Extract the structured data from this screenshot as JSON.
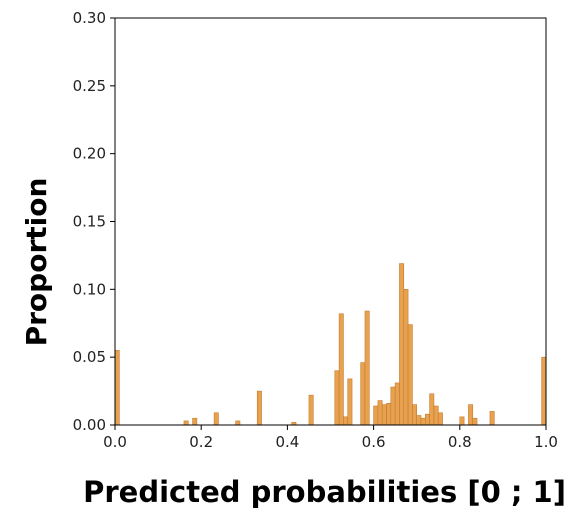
{
  "chart_data": {
    "type": "bar",
    "title": "",
    "xlabel": "Predicted probabilities [0 ; 1]",
    "ylabel": "Proportion",
    "xlim": [
      0,
      1
    ],
    "ylim": [
      0,
      0.3
    ],
    "xticks": [
      "0.0",
      "0.2",
      "0.4",
      "0.6",
      "0.8",
      "1.0"
    ],
    "yticks": [
      "0.00",
      "0.05",
      "0.10",
      "0.15",
      "0.20",
      "0.25",
      "0.30"
    ],
    "bin_width": 0.01,
    "bar_color": "#E8A24F",
    "bar_edge_color": "#C27B2E",
    "grid": false,
    "series": [
      {
        "bins": [
          {
            "x": 0.0,
            "value": 0.055
          },
          {
            "x": 0.16,
            "value": 0.003
          },
          {
            "x": 0.18,
            "value": 0.005
          },
          {
            "x": 0.23,
            "value": 0.009
          },
          {
            "x": 0.28,
            "value": 0.003
          },
          {
            "x": 0.33,
            "value": 0.025
          },
          {
            "x": 0.41,
            "value": 0.002
          },
          {
            "x": 0.45,
            "value": 0.022
          },
          {
            "x": 0.51,
            "value": 0.04
          },
          {
            "x": 0.52,
            "value": 0.082
          },
          {
            "x": 0.53,
            "value": 0.006
          },
          {
            "x": 0.54,
            "value": 0.034
          },
          {
            "x": 0.57,
            "value": 0.046
          },
          {
            "x": 0.58,
            "value": 0.084
          },
          {
            "x": 0.6,
            "value": 0.014
          },
          {
            "x": 0.61,
            "value": 0.018
          },
          {
            "x": 0.62,
            "value": 0.015
          },
          {
            "x": 0.63,
            "value": 0.016
          },
          {
            "x": 0.64,
            "value": 0.028
          },
          {
            "x": 0.65,
            "value": 0.031
          },
          {
            "x": 0.66,
            "value": 0.119
          },
          {
            "x": 0.67,
            "value": 0.1
          },
          {
            "x": 0.68,
            "value": 0.074
          },
          {
            "x": 0.69,
            "value": 0.015
          },
          {
            "x": 0.7,
            "value": 0.007
          },
          {
            "x": 0.71,
            "value": 0.005
          },
          {
            "x": 0.72,
            "value": 0.008
          },
          {
            "x": 0.73,
            "value": 0.023
          },
          {
            "x": 0.74,
            "value": 0.014
          },
          {
            "x": 0.75,
            "value": 0.009
          },
          {
            "x": 0.8,
            "value": 0.006
          },
          {
            "x": 0.82,
            "value": 0.015
          },
          {
            "x": 0.83,
            "value": 0.005
          },
          {
            "x": 0.87,
            "value": 0.01
          },
          {
            "x": 0.99,
            "value": 0.05
          }
        ]
      }
    ]
  }
}
